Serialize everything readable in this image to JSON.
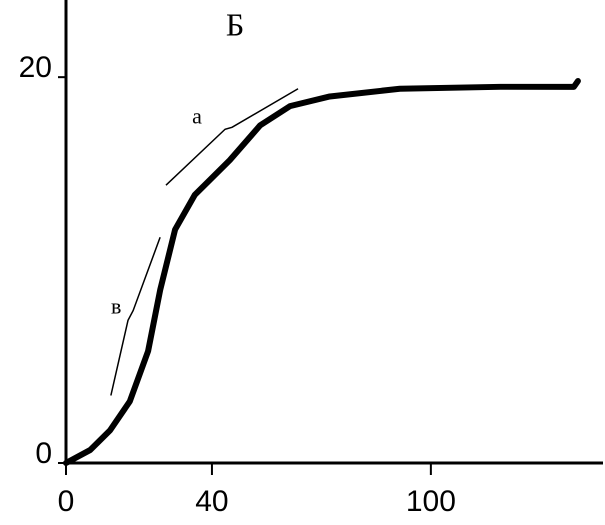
{
  "chart_data": {
    "type": "line",
    "title": "Б",
    "x": [
      0,
      6.6,
      12.1,
      17.5,
      22.5,
      25.8,
      29.9,
      35.3,
      44.9,
      53.2,
      61.4,
      72.3,
      91.5,
      119,
      139.2,
      140.3
    ],
    "series": [
      {
        "color": "#000000",
        "values": [
          0,
          0.67,
          1.7,
          3.2,
          5.8,
          8.96,
          12.1,
          13.9,
          15.7,
          17.5,
          18.5,
          19.0,
          19.4,
          19.5,
          19.5,
          19.8
        ]
      }
    ],
    "annotations": [
      {
        "text": "а",
        "x": [
          27.4,
          43.6,
          45.5,
          63.6
        ],
        "y": [
          14.4,
          17.3,
          17.4,
          19.4
        ]
      },
      {
        "text": "в",
        "x": [
          12.3,
          17.0,
          18.4,
          25.8
        ],
        "y": [
          3.5,
          7.4,
          7.9,
          11.7
        ]
      }
    ],
    "xlim": [
      0,
      148
    ],
    "ylim": [
      0,
      24
    ],
    "xticks": [
      0,
      40,
      100
    ],
    "yticks": [
      0,
      20
    ],
    "grid": false
  }
}
